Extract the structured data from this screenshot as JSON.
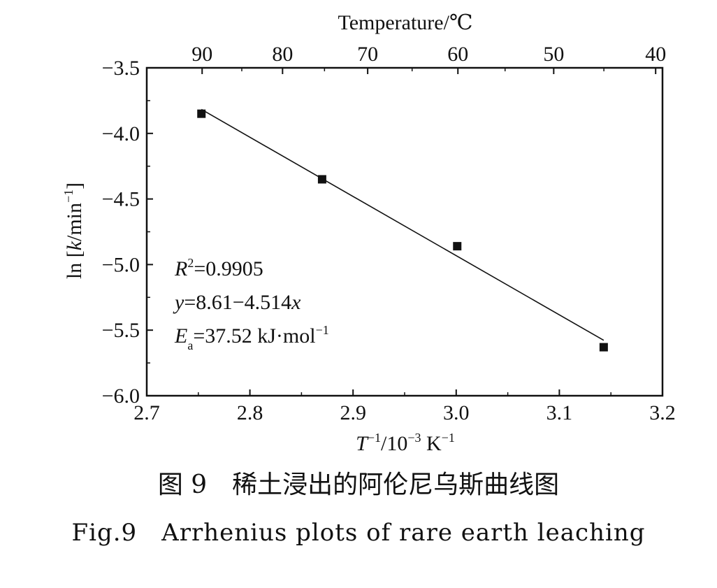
{
  "chart_data": {
    "type": "scatter",
    "x_axis_label": {
      "base": "T",
      "sup1": "−1",
      "mid": "/10",
      "sup2": "−3",
      "mid2": " K",
      "sup3": "−1"
    },
    "top_axis_label": "Temperature/℃",
    "y_axis_label": {
      "pre": "ln [",
      "var": "k",
      "mid": "/min",
      "sup": "−1",
      "post": "]"
    },
    "xlim": [
      2.7,
      3.2
    ],
    "ylim": [
      -6.0,
      -3.5
    ],
    "x_ticks": [
      2.7,
      2.8,
      2.9,
      3.0,
      3.1,
      3.2
    ],
    "x_tick_labels": [
      "2.7",
      "2.8",
      "2.9",
      "3.0",
      "3.1",
      "3.2"
    ],
    "y_ticks": [
      -3.5,
      -4.0,
      -4.5,
      -5.0,
      -5.5,
      -6.0
    ],
    "y_tick_labels": [
      "−3.5",
      "−4.0",
      "−4.5",
      "−5.0",
      "−5.5",
      "−6.0"
    ],
    "top_ticks_celsius": [
      90,
      80,
      70,
      60,
      50,
      40
    ],
    "top_tick_labels": [
      "90",
      "80",
      "70",
      "60",
      "50",
      "40"
    ],
    "series": [
      {
        "x": [
          2.753,
          2.87,
          3.001,
          3.143
        ],
        "y": [
          -3.85,
          -4.35,
          -4.86,
          -5.63
        ]
      }
    ],
    "fit_line": {
      "intercept": 8.61,
      "slope": -4.514,
      "x_range": [
        2.753,
        3.143
      ]
    },
    "annotations": {
      "r2": {
        "var": "R",
        "sup": "2",
        "rest": "=0.9905"
      },
      "equation": {
        "var": "y",
        "rest": "=8.61−4.514",
        "var2": "x"
      },
      "ea": {
        "var": "E",
        "sub": "a",
        "rest": "=37.52 kJ·mol",
        "sup": "−1"
      }
    },
    "grid": false,
    "legend": "none"
  },
  "captions": {
    "chinese": "图 9　稀土浸出的阿伦尼乌斯曲线图",
    "english": "Fig.9　Arrhenius plots of rare earth leaching"
  }
}
